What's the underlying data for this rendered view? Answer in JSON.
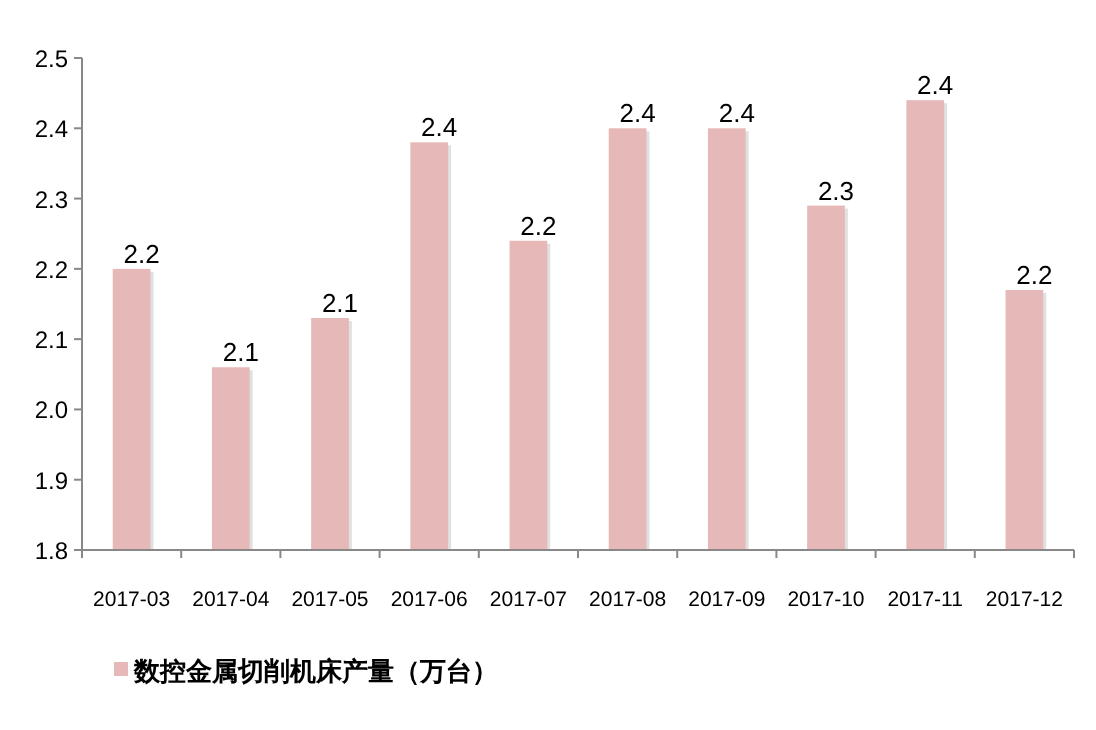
{
  "chart_data": {
    "type": "bar",
    "categories": [
      "2017-03",
      "2017-04",
      "2017-05",
      "2017-06",
      "2017-07",
      "2017-08",
      "2017-09",
      "2017-10",
      "2017-11",
      "2017-12"
    ],
    "series": [
      {
        "name": "数控金属切削机床产量（万台）",
        "color": "#e6b8b7",
        "values": [
          2.2,
          2.06,
          2.13,
          2.38,
          2.24,
          2.4,
          2.4,
          2.29,
          2.44,
          2.17
        ],
        "value_labels": [
          "2.2",
          "2.1",
          "2.1",
          "2.4",
          "2.2",
          "2.4",
          "2.4",
          "2.3",
          "2.4",
          "2.2"
        ]
      }
    ],
    "ylim": [
      1.8,
      2.5
    ],
    "yticks": [
      1.8,
      1.9,
      {
        "value": 2,
        "label": "2.0"
      },
      2.1,
      2.2,
      2.3,
      2.4,
      2.5
    ],
    "legend": "bottom",
    "grid": false
  }
}
